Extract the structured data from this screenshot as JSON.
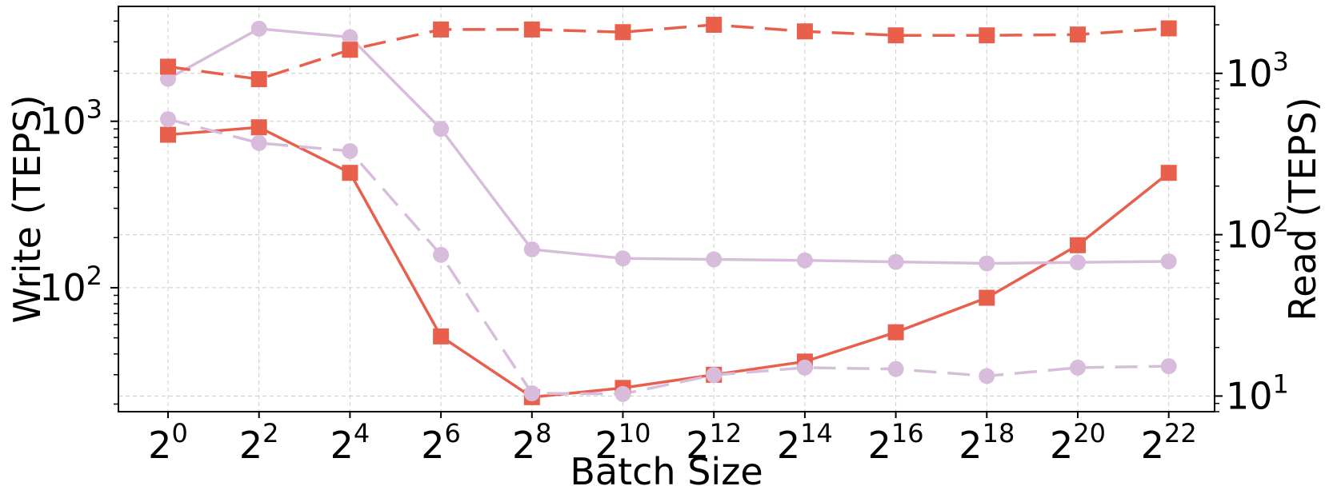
{
  "chart_data": {
    "type": "line",
    "xlabel": "Batch Size",
    "ylabel_left": "Write (TEPS)",
    "ylabel_right": "Read (TEPS)",
    "x_scale": "log2",
    "y_scale_left": "log10",
    "y_scale_right": "log10",
    "x_exponents": [
      0,
      2,
      4,
      6,
      8,
      10,
      12,
      14,
      16,
      18,
      20,
      22
    ],
    "x_tick_labels": [
      {
        "base": "2",
        "exp": "0"
      },
      {
        "base": "2",
        "exp": "2"
      },
      {
        "base": "2",
        "exp": "4"
      },
      {
        "base": "2",
        "exp": "6"
      },
      {
        "base": "2",
        "exp": "8"
      },
      {
        "base": "2",
        "exp": "10"
      },
      {
        "base": "2",
        "exp": "12"
      },
      {
        "base": "2",
        "exp": "14"
      },
      {
        "base": "2",
        "exp": "16"
      },
      {
        "base": "2",
        "exp": "18"
      },
      {
        "base": "2",
        "exp": "20"
      },
      {
        "base": "2",
        "exp": "22"
      }
    ],
    "y_left_ticks": [
      {
        "base": "10",
        "exp": "2",
        "value": 100
      },
      {
        "base": "10",
        "exp": "3",
        "value": 1000
      }
    ],
    "y_right_ticks": [
      {
        "base": "10",
        "exp": "1",
        "value": 10
      },
      {
        "base": "10",
        "exp": "2",
        "value": 100
      },
      {
        "base": "10",
        "exp": "3",
        "value": 1000
      }
    ],
    "ylim_left": [
      18,
      4900
    ],
    "ylim_right": [
      8,
      2600
    ],
    "grid": true,
    "series": [
      {
        "axis": "left",
        "color": "#e8604c",
        "marker": "square",
        "linestyle": "solid",
        "values": [
          830,
          920,
          490,
          51,
          22,
          25,
          30,
          36,
          54,
          87,
          180,
          490
        ]
      },
      {
        "axis": "left",
        "color": "#d8bcdb",
        "marker": "circle",
        "linestyle": "solid",
        "values": [
          1800,
          3600,
          3200,
          900,
          170,
          150,
          148,
          146,
          143,
          140,
          142,
          144
        ]
      },
      {
        "axis": "right",
        "color": "#e8604c",
        "marker": "square",
        "linestyle": "dashed",
        "values": [
          1100,
          920,
          1400,
          1870,
          1870,
          1800,
          2000,
          1820,
          1720,
          1720,
          1740,
          1900
        ]
      },
      {
        "axis": "right",
        "color": "#d8bcdb",
        "marker": "circle",
        "linestyle": "dashed",
        "values": [
          520,
          370,
          330,
          75,
          10.4,
          10.3,
          13.5,
          15,
          14.7,
          13.3,
          15,
          15.3
        ]
      }
    ]
  }
}
